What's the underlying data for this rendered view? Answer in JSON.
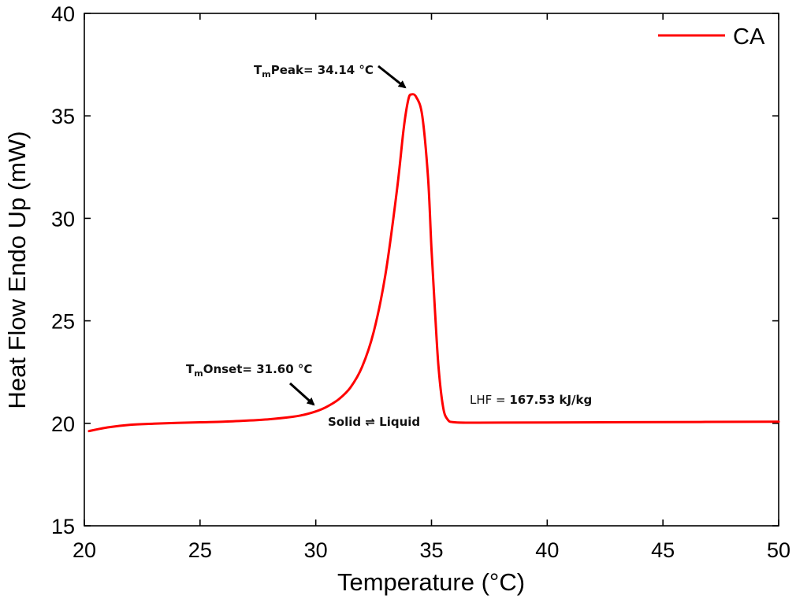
{
  "chart_data": {
    "type": "line",
    "xlabel": "Temperature (°C)",
    "ylabel": "Heat Flow Endo Up (mW)",
    "xlim": [
      20,
      50
    ],
    "ylim": [
      15,
      40
    ],
    "x_ticks": [
      "20",
      "25",
      "30",
      "35",
      "40",
      "45",
      "50"
    ],
    "y_ticks": [
      "15",
      "20",
      "25",
      "30",
      "35",
      "40"
    ],
    "grid": false,
    "legend_position": "top-right",
    "series": [
      {
        "name": "CA",
        "color": "#ff0000",
        "points": [
          [
            20.2,
            19.62
          ],
          [
            21.0,
            19.8
          ],
          [
            22.0,
            19.93
          ],
          [
            23.0,
            19.98
          ],
          [
            24.0,
            20.02
          ],
          [
            25.0,
            20.05
          ],
          [
            26.0,
            20.08
          ],
          [
            27.0,
            20.13
          ],
          [
            28.0,
            20.2
          ],
          [
            29.0,
            20.32
          ],
          [
            29.5,
            20.42
          ],
          [
            30.0,
            20.58
          ],
          [
            30.5,
            20.82
          ],
          [
            31.0,
            21.18
          ],
          [
            31.5,
            21.75
          ],
          [
            32.0,
            22.75
          ],
          [
            32.5,
            24.45
          ],
          [
            33.0,
            27.2
          ],
          [
            33.5,
            31.3
          ],
          [
            33.8,
            34.4
          ],
          [
            34.0,
            35.8
          ],
          [
            34.14,
            36.05
          ],
          [
            34.35,
            35.9
          ],
          [
            34.6,
            35.0
          ],
          [
            34.85,
            32.0
          ],
          [
            35.0,
            28.5
          ],
          [
            35.15,
            25.5
          ],
          [
            35.3,
            22.8
          ],
          [
            35.5,
            20.8
          ],
          [
            35.7,
            20.18
          ],
          [
            36.0,
            20.05
          ],
          [
            37.0,
            20.03
          ],
          [
            40.0,
            20.04
          ],
          [
            45.0,
            20.06
          ],
          [
            50.0,
            20.08
          ]
        ]
      }
    ],
    "annotations": {
      "peak": {
        "prefix": "T",
        "sub": "m",
        "text": "Peak= 34.14 °C",
        "x": 34.14,
        "y": 36.05
      },
      "onset": {
        "prefix": "T",
        "sub": "m",
        "text": "Onset= 31.60 °C",
        "x": 30.1,
        "y": 20.75
      },
      "transition": {
        "text": "Solid ⇌ Liquid"
      },
      "lhf": {
        "label": "LHF = ",
        "value": "167.53 kJ/kg"
      }
    }
  }
}
